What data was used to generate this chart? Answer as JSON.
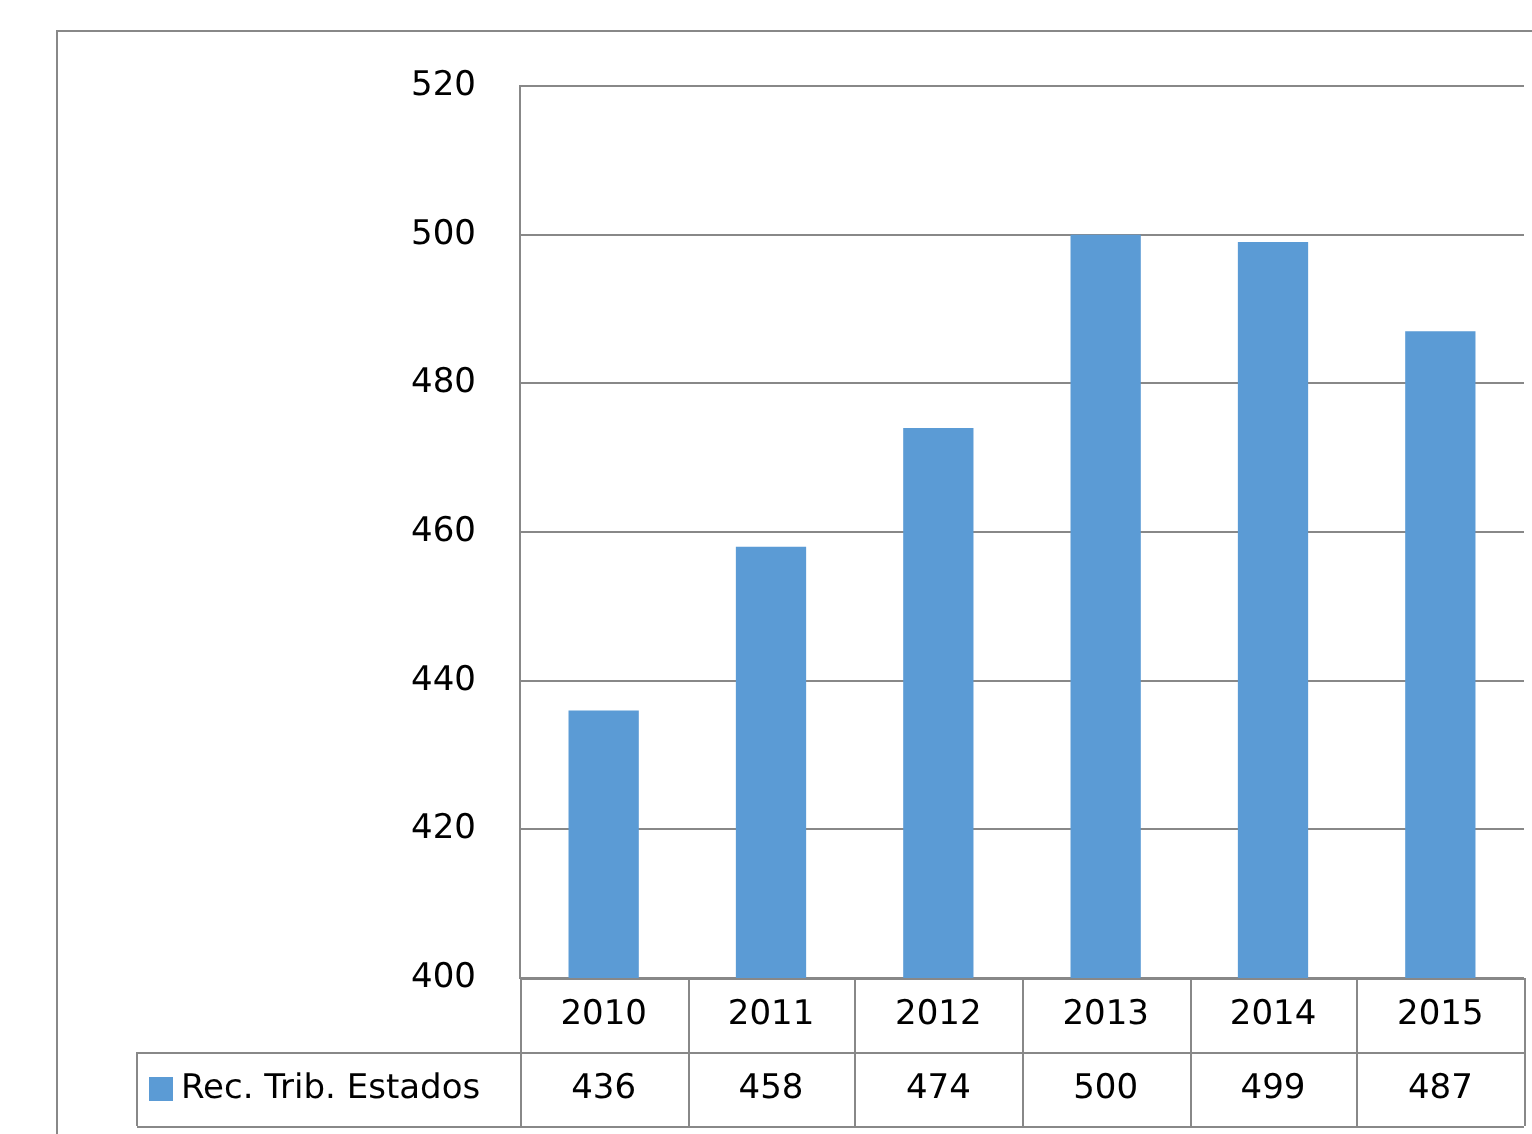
{
  "chart_data": {
    "type": "bar",
    "categories": [
      "2010",
      "2011",
      "2012",
      "2013",
      "2014",
      "2015"
    ],
    "series": [
      {
        "name": "Rec. Trib. Estados",
        "color": "#5b9bd5",
        "values": [
          436,
          458,
          474,
          500,
          499,
          487
        ]
      }
    ],
    "ylim": [
      400,
      520
    ],
    "yticks": [
      400,
      420,
      440,
      460,
      480,
      500,
      520
    ],
    "grid": "y",
    "legend": "bottom",
    "data_labels": true
  }
}
